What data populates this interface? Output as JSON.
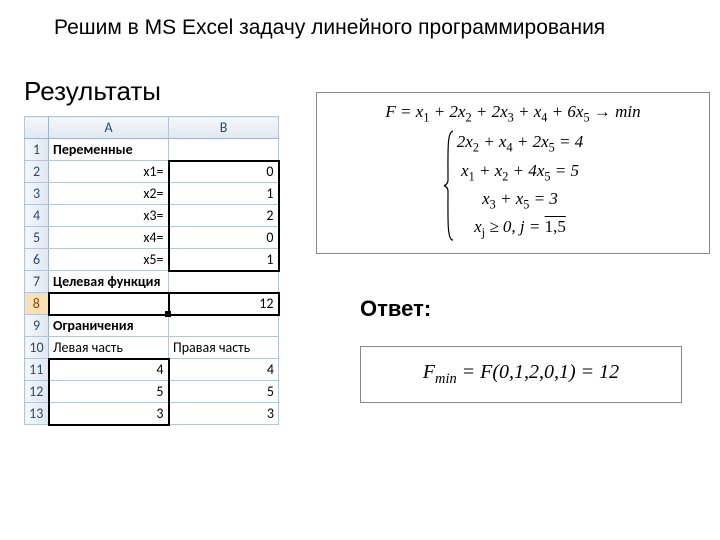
{
  "title": "Решим в MS Excel задачу линейного программирования",
  "results_heading": "Результаты",
  "excel": {
    "colA_header": "A",
    "colB_header": "B",
    "rows": [
      {
        "n": "1",
        "a": "Переменные",
        "b": "",
        "a_bold": true,
        "a_align": "left"
      },
      {
        "n": "2",
        "a": "x1=",
        "b": "0",
        "a_align": "right",
        "b_align": "right",
        "b_thick": "tlr"
      },
      {
        "n": "3",
        "a": "x2=",
        "b": "1",
        "a_align": "right",
        "b_align": "right",
        "b_thick": "lr"
      },
      {
        "n": "4",
        "a": "x3=",
        "b": "2",
        "a_align": "right",
        "b_align": "right",
        "b_thick": "lr"
      },
      {
        "n": "5",
        "a": "x4=",
        "b": "0",
        "a_align": "right",
        "b_align": "right",
        "b_thick": "lr"
      },
      {
        "n": "6",
        "a": "x5=",
        "b": "1",
        "a_align": "right",
        "b_align": "right",
        "b_thick": "blr"
      },
      {
        "n": "7",
        "a": "Целевая функция",
        "b": "",
        "a_bold": true,
        "a_align": "left"
      },
      {
        "n": "8",
        "a": "",
        "b": "12",
        "b_align": "right",
        "a_thick": "all",
        "b_sel": true,
        "row_sel": true
      },
      {
        "n": "9",
        "a": "Ограничения",
        "b": "",
        "a_bold": true,
        "a_align": "left"
      },
      {
        "n": "10",
        "a": "Левая часть",
        "b": "Правая часть",
        "a_align": "left",
        "b_align": "left"
      },
      {
        "n": "11",
        "a": "4",
        "b": "4",
        "a_align": "right",
        "b_align": "right",
        "a_thick": "tlr"
      },
      {
        "n": "12",
        "a": "5",
        "b": "5",
        "a_align": "right",
        "b_align": "right",
        "a_thick": "lr"
      },
      {
        "n": "13",
        "a": "3",
        "b": "3",
        "a_align": "right",
        "b_align": "right",
        "a_thick": "blr"
      }
    ]
  },
  "formula": {
    "obj_lhs": "F",
    "c": [
      "",
      "2",
      "2",
      "",
      "6"
    ],
    "rhs_arrow": "→ min",
    "constraints": [
      "2x<sub>2</sub> + x<sub>4</sub> + 2x<sub>5</sub> = 4",
      "x<sub>1</sub> + x<sub>2</sub> + 4x<sub>5</sub> = 5",
      "x<sub>3</sub> + x<sub>5</sub> = 3",
      "x<sub>j</sub> ≥ 0, j = <span class=\"overline\">1,5</span>"
    ]
  },
  "answer_heading": "Ответ:",
  "answer": {
    "lhs": "F<sub>min</sub>",
    "args": "(0,1,2,0,1)",
    "val": "12"
  }
}
